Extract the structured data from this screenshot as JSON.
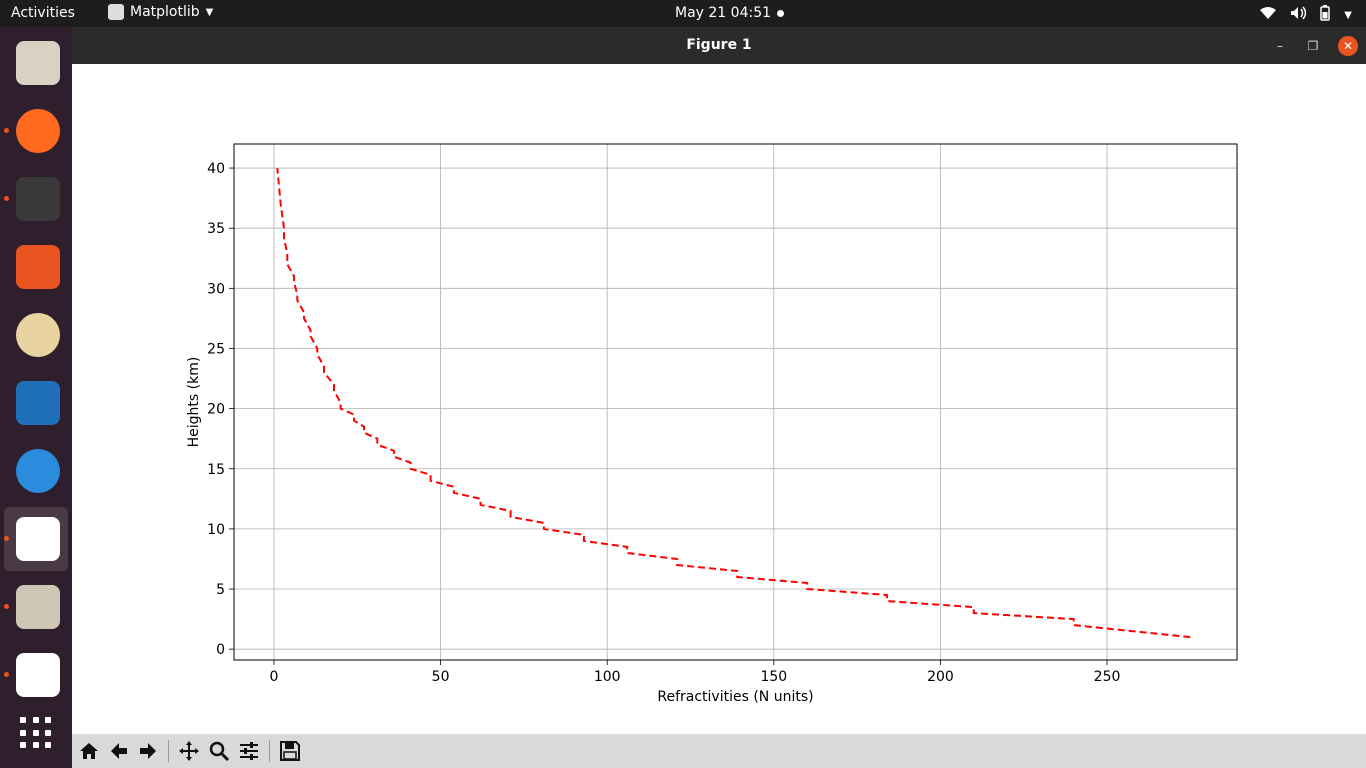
{
  "topbar": {
    "activities": "Activities",
    "app_name": "Matplotlib",
    "clock": "May 21  04:51"
  },
  "window": {
    "title": "Figure 1"
  },
  "dock": {
    "items": [
      {
        "name": "files",
        "icon": "files-icon",
        "color": "#d8d2c2",
        "running": false
      },
      {
        "name": "firefox",
        "icon": "firefox-icon",
        "color": "#ff6a1f",
        "running": true
      },
      {
        "name": "terminal",
        "icon": "terminal-icon",
        "color": "#3a3a3a",
        "running": true
      },
      {
        "name": "software",
        "icon": "app-store-icon",
        "color": "#e95420",
        "running": false
      },
      {
        "name": "rhythmbox",
        "icon": "speaker-icon",
        "color": "#e9d3a0",
        "running": false
      },
      {
        "name": "writer",
        "icon": "writer-icon",
        "color": "#1f6fb9",
        "running": false
      },
      {
        "name": "help",
        "icon": "help-icon",
        "color": "#2b8bdc",
        "running": false
      },
      {
        "name": "matplotlib",
        "icon": "matplotlib-icon",
        "color": "#ffffff",
        "running": true,
        "active": true
      },
      {
        "name": "archive",
        "icon": "archive-icon",
        "color": "#cfc6b5",
        "running": true
      },
      {
        "name": "matplotlib-2",
        "icon": "matplotlib-icon",
        "color": "#ffffff",
        "running": true
      }
    ]
  },
  "toolbar": {
    "buttons": [
      "home-icon",
      "back-icon",
      "forward-icon",
      "pan-icon",
      "zoom-icon",
      "configure-icon",
      "save-icon"
    ]
  },
  "chart_data": {
    "type": "line",
    "xlabel": "Refractivities (N units)",
    "ylabel": "Heights (km)",
    "xlim": [
      -12,
      289
    ],
    "ylim": [
      -0.9,
      42
    ],
    "xticks": [
      0,
      50,
      100,
      150,
      200,
      250
    ],
    "yticks": [
      0,
      5,
      10,
      15,
      20,
      25,
      30,
      35,
      40
    ],
    "grid": true,
    "series": [
      {
        "color": "#ff0000",
        "style": "dashed",
        "x": [
          275,
          240,
          240,
          210,
          210,
          184,
          184,
          160,
          160,
          139,
          139,
          121,
          121,
          106,
          106,
          93,
          93,
          81,
          81,
          71,
          71,
          62,
          62,
          54,
          54,
          47,
          47,
          41,
          41,
          36,
          36,
          31,
          31,
          27,
          27,
          24,
          24,
          20,
          20,
          18,
          18,
          15,
          15,
          13,
          13,
          11,
          11,
          9,
          9,
          7,
          7,
          6,
          6,
          4,
          4,
          3,
          3,
          2,
          1
        ],
        "y": [
          1.0,
          2.0,
          2.5,
          3.0,
          3.5,
          4.0,
          4.5,
          5.0,
          5.5,
          6.0,
          6.5,
          7.0,
          7.5,
          8.0,
          8.5,
          9.0,
          9.5,
          10.0,
          10.5,
          11.0,
          11.5,
          12.0,
          12.5,
          13.0,
          13.5,
          14.0,
          14.5,
          15.0,
          15.5,
          16.0,
          16.5,
          17.0,
          17.5,
          18.0,
          18.5,
          19.0,
          19.5,
          20.0,
          20.5,
          21.5,
          22.0,
          23.0,
          23.5,
          24.5,
          25.0,
          26.0,
          26.5,
          27.5,
          28.0,
          29.0,
          29.5,
          30.5,
          31.0,
          32.0,
          33.0,
          34.0,
          35.0,
          37.0,
          40.0
        ]
      }
    ]
  }
}
